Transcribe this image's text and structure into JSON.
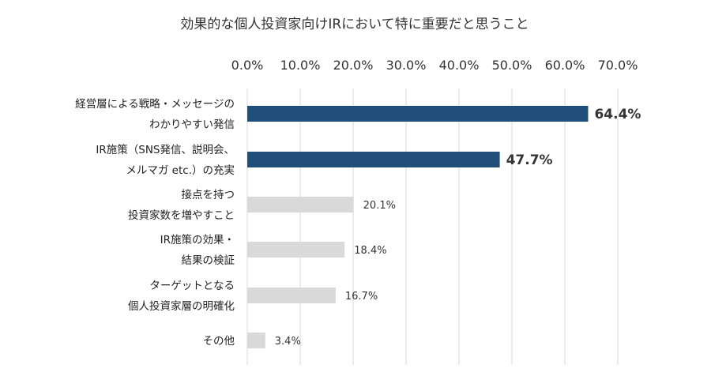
{
  "chart_data": {
    "type": "bar",
    "orientation": "horizontal",
    "title": "効果的な個人投資家向けIRにおいて特に重要だと思うこと",
    "xlim": [
      0,
      70
    ],
    "xticks": [
      "0.0%",
      "10.0%",
      "20.0%",
      "30.0%",
      "40.0%",
      "50.0%",
      "60.0%",
      "70.0%"
    ],
    "grid": true,
    "categories": [
      [
        "経営層による戦略・メッセージの",
        "わかりやすい発信"
      ],
      [
        "IR施策（SNS発信、説明会、",
        "メルマガ etc.）の充実"
      ],
      [
        "接点を持つ",
        "投資家数を増やすこと"
      ],
      [
        "IR施策の効果・",
        "結果の検証"
      ],
      [
        "ターゲットとなる",
        "個人投資家層の明確化"
      ],
      [
        "その他"
      ]
    ],
    "values": [
      64.4,
      47.7,
      20.1,
      18.4,
      16.7,
      3.4
    ],
    "value_labels": [
      "64.4%",
      "47.7%",
      "20.1%",
      "18.4%",
      "16.7%",
      "3.4%"
    ],
    "highlight": [
      true,
      true,
      false,
      false,
      false,
      false
    ],
    "colors": {
      "highlight": "#1f4e79",
      "normal": "#d9d9d9",
      "grid": "#d9d9d9"
    }
  }
}
